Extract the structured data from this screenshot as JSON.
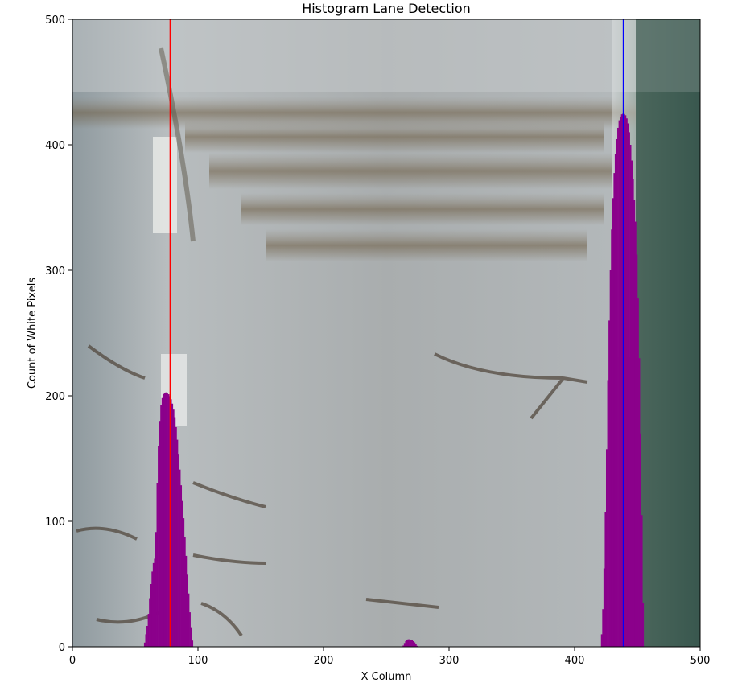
{
  "chart_data": {
    "type": "area",
    "title": "Histogram Lane Detection",
    "xlabel": "X Column",
    "ylabel": "Count of White Pixels",
    "xlim": [
      0,
      500
    ],
    "ylim": [
      0,
      500
    ],
    "xticks": [
      "0",
      "100",
      "200",
      "300",
      "400",
      "500"
    ],
    "yticks": [
      "0",
      "100",
      "200",
      "300",
      "400",
      "500"
    ],
    "grid": false,
    "background": "warped road image (bird's-eye view)",
    "series": [
      {
        "color": "#8b008b",
        "x": [
          57,
          60,
          62,
          64,
          66,
          68,
          70,
          72,
          74,
          76,
          78,
          80,
          82,
          84,
          86,
          88,
          90,
          92,
          94,
          96
        ],
        "y": [
          0,
          20,
          45,
          65,
          72,
          150,
          190,
          201,
          203,
          202,
          199,
          192,
          180,
          160,
          135,
          110,
          80,
          50,
          20,
          0
        ]
      },
      {
        "color": "#8b008b",
        "x": [
          263,
          265,
          267,
          269,
          271,
          273,
          275
        ],
        "y": [
          0,
          4,
          6,
          6,
          5,
          3,
          0
        ]
      },
      {
        "color": "#8b008b",
        "x": [
          421,
          423,
          425,
          427,
          429,
          431,
          433,
          435,
          437,
          439,
          441,
          443,
          445,
          447,
          449,
          451,
          453,
          455
        ],
        "y": [
          0,
          40,
          130,
          240,
          320,
          370,
          400,
          418,
          424,
          425,
          423,
          415,
          395,
          365,
          330,
          260,
          140,
          0
        ]
      }
    ],
    "vlines": [
      {
        "x": 78,
        "color": "#ff0000"
      },
      {
        "x": 439,
        "color": "#0000ff"
      }
    ]
  }
}
